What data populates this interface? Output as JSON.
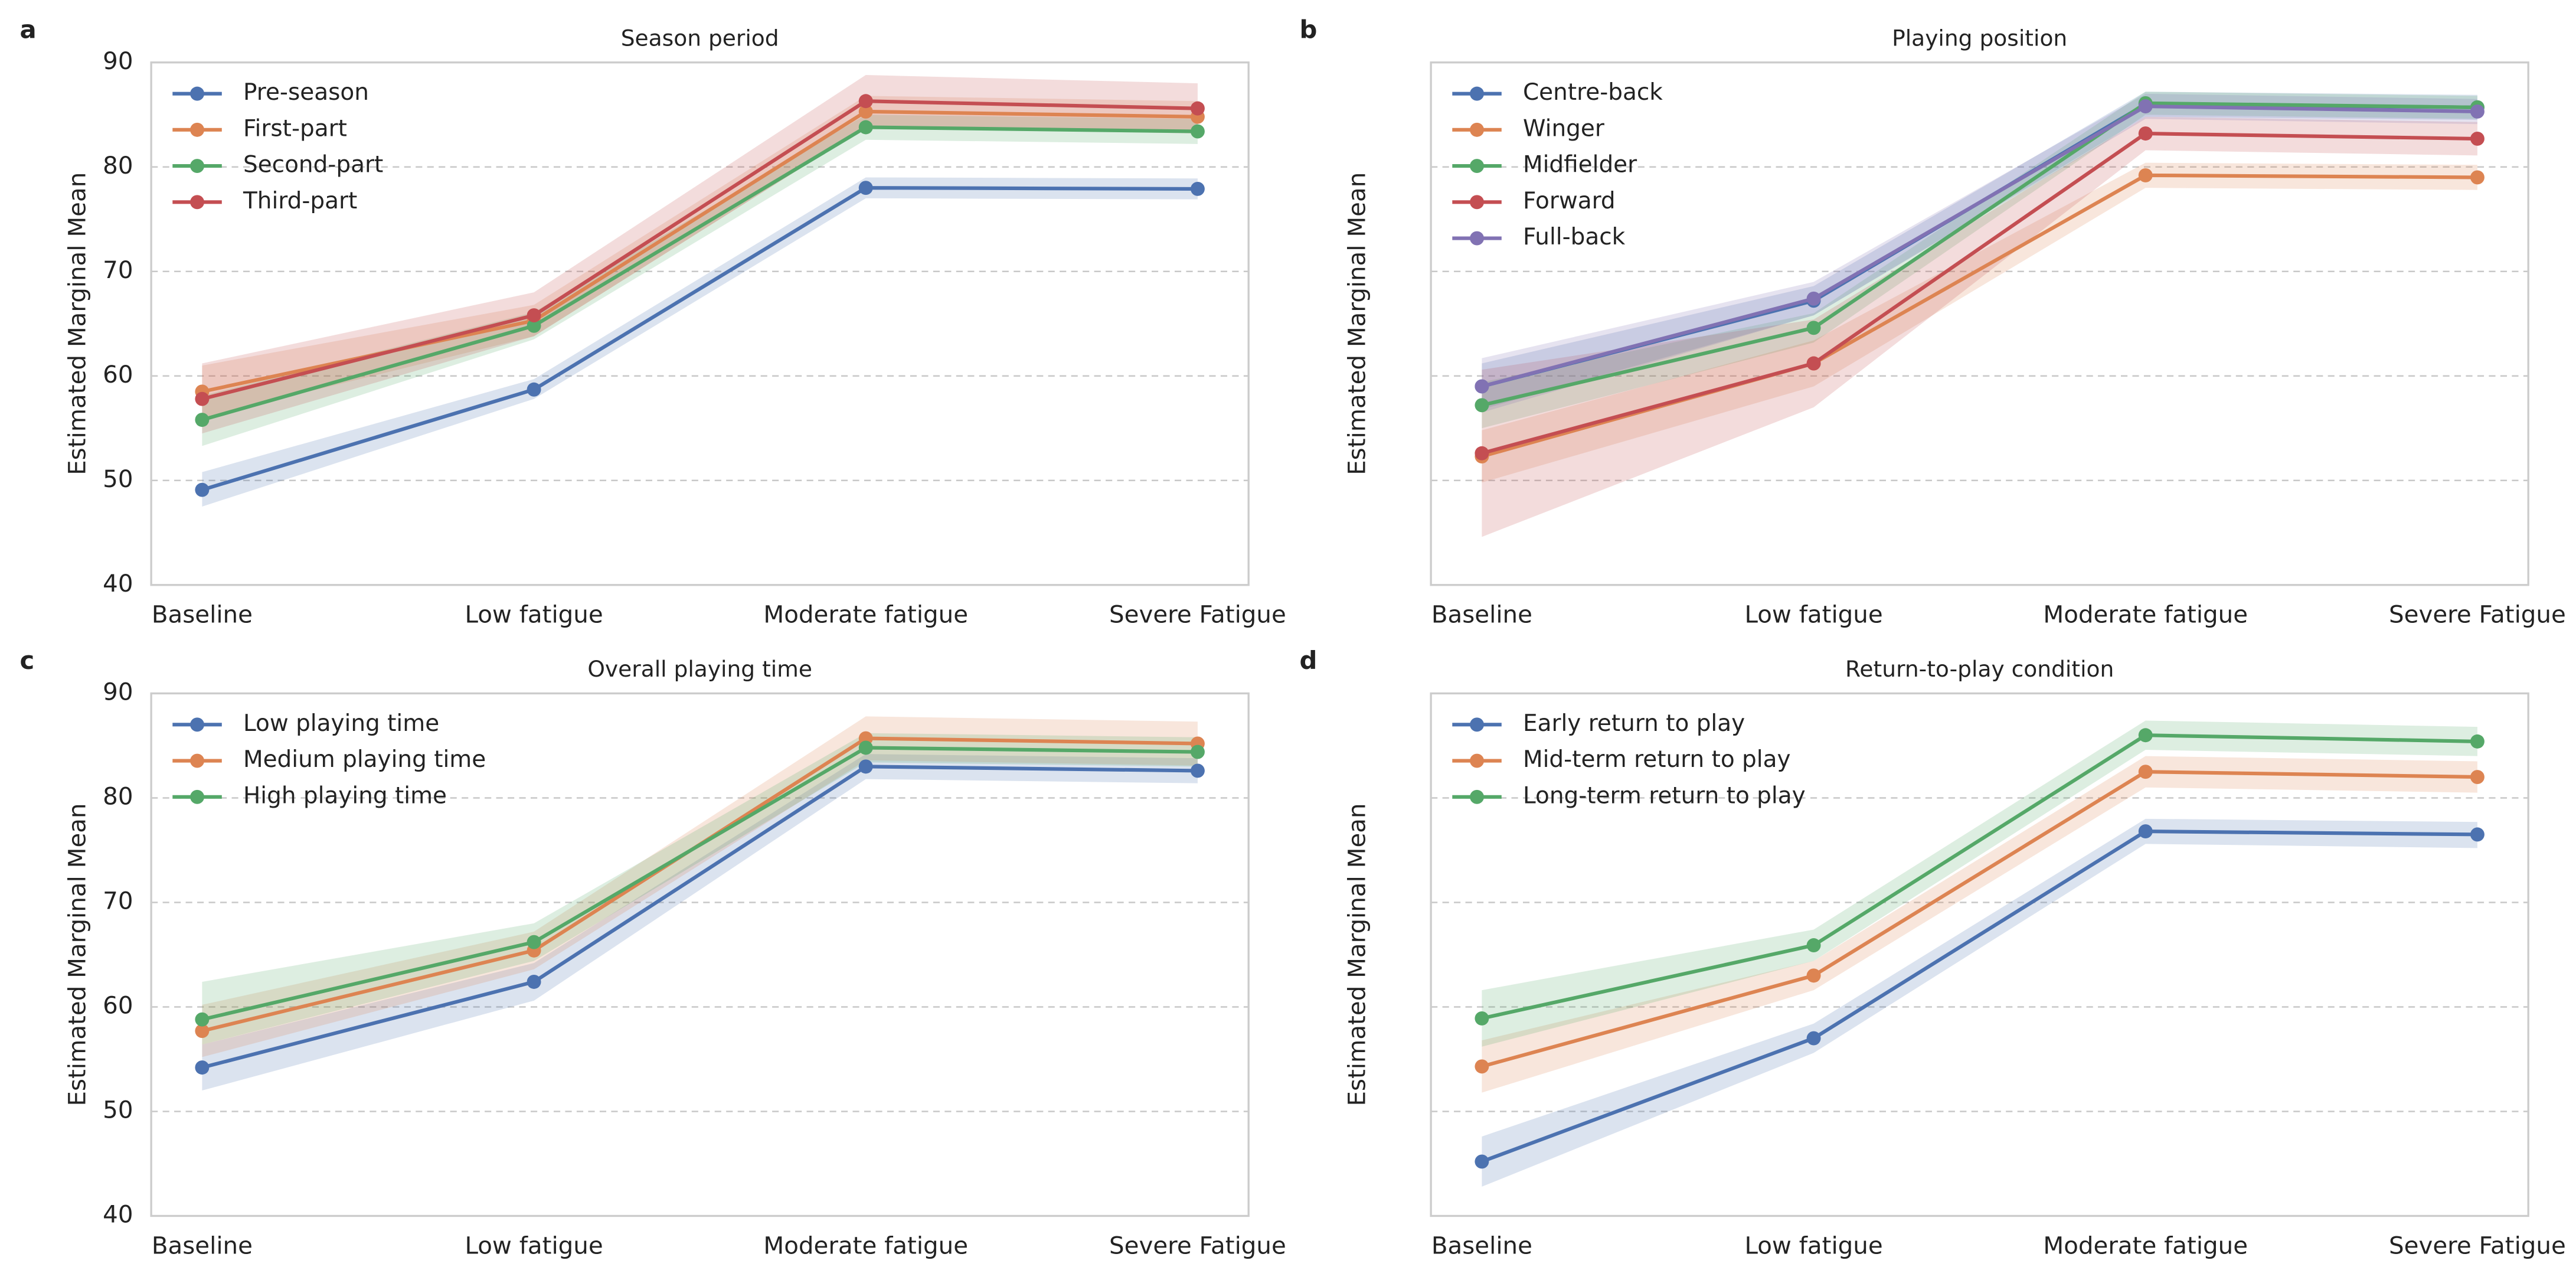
{
  "chart_data": [
    {
      "type": "line",
      "panel": "a",
      "title": "Season period",
      "ylabel": "Estimated Marginal Mean",
      "categories": [
        "Baseline",
        "Low fatigue",
        "Moderate fatigue",
        "Severe Fatigue"
      ],
      "ylim": [
        40,
        90
      ],
      "yticks": [
        40,
        50,
        60,
        70,
        80,
        90
      ],
      "show_ytick_labels": true,
      "grid": true,
      "legend": "upper left",
      "series": [
        {
          "name": "Pre-season",
          "color": "#4c72b0",
          "values": [
            49.1,
            58.7,
            78.0,
            77.9
          ],
          "lower": [
            47.5,
            57.8,
            77.0,
            76.9
          ],
          "upper": [
            50.8,
            59.7,
            79.0,
            78.9
          ]
        },
        {
          "name": "First-part",
          "color": "#dd8452",
          "values": [
            58.5,
            65.3,
            85.3,
            84.8
          ],
          "lower": [
            56.0,
            63.8,
            83.8,
            83.3
          ],
          "upper": [
            61.0,
            66.8,
            86.8,
            86.3
          ]
        },
        {
          "name": "Second-part",
          "color": "#55a868",
          "values": [
            55.8,
            64.8,
            83.8,
            83.4
          ],
          "lower": [
            53.3,
            63.5,
            82.6,
            82.2
          ],
          "upper": [
            58.1,
            66.1,
            85.0,
            84.6
          ]
        },
        {
          "name": "Third-part",
          "color": "#c44e52",
          "values": [
            57.8,
            65.8,
            86.3,
            85.6
          ],
          "lower": [
            54.5,
            63.8,
            83.8,
            83.2
          ],
          "upper": [
            61.2,
            68.0,
            88.8,
            88.0
          ]
        }
      ]
    },
    {
      "type": "line",
      "panel": "b",
      "title": "Playing position",
      "ylabel": "Estimated Marginal Mean",
      "categories": [
        "Baseline",
        "Low fatigue",
        "Moderate fatigue",
        "Severe Fatigue"
      ],
      "ylim": [
        40,
        90
      ],
      "yticks": [
        40,
        50,
        60,
        70,
        80,
        90
      ],
      "show_ytick_labels": false,
      "grid": true,
      "legend": "upper left",
      "series": [
        {
          "name": "Centre-back",
          "color": "#4c72b0",
          "values": [
            59.0,
            67.2,
            86.0,
            85.7
          ],
          "lower": [
            56.8,
            65.8,
            84.8,
            84.5
          ],
          "upper": [
            61.2,
            68.6,
            87.2,
            86.9
          ]
        },
        {
          "name": "Winger",
          "color": "#dd8452",
          "values": [
            52.3,
            61.2,
            79.2,
            79.0
          ],
          "lower": [
            49.8,
            59.0,
            78.0,
            77.8
          ],
          "upper": [
            54.8,
            63.4,
            80.4,
            80.2
          ]
        },
        {
          "name": "Midfielder",
          "color": "#55a868",
          "values": [
            57.2,
            64.6,
            86.1,
            85.7
          ],
          "lower": [
            55.0,
            63.2,
            85.0,
            84.6
          ],
          "upper": [
            59.4,
            66.0,
            87.2,
            86.8
          ]
        },
        {
          "name": "Forward",
          "color": "#c44e52",
          "values": [
            52.6,
            61.2,
            83.2,
            82.7
          ],
          "lower": [
            44.6,
            57.0,
            81.6,
            81.1
          ],
          "upper": [
            60.6,
            65.4,
            84.8,
            84.3
          ]
        },
        {
          "name": "Full-back",
          "color": "#8172b3",
          "values": [
            59.0,
            67.4,
            85.8,
            85.3
          ],
          "lower": [
            56.5,
            65.8,
            84.6,
            84.1
          ],
          "upper": [
            61.7,
            69.0,
            87.0,
            86.5
          ]
        }
      ]
    },
    {
      "type": "line",
      "panel": "c",
      "title": "Overall playing time",
      "ylabel": "Estimated Marginal Mean",
      "categories": [
        "Baseline",
        "Low fatigue",
        "Moderate fatigue",
        "Severe Fatigue"
      ],
      "ylim": [
        40,
        90
      ],
      "yticks": [
        40,
        50,
        60,
        70,
        80,
        90
      ],
      "show_ytick_labels": true,
      "grid": true,
      "legend": "upper left",
      "series": [
        {
          "name": "Low playing time",
          "color": "#4c72b0",
          "values": [
            54.2,
            62.4,
            83.0,
            82.6
          ],
          "lower": [
            52.0,
            60.6,
            81.8,
            81.4
          ],
          "upper": [
            56.4,
            64.2,
            84.2,
            83.8
          ]
        },
        {
          "name": "Medium playing time",
          "color": "#dd8452",
          "values": [
            57.7,
            65.4,
            85.7,
            85.2
          ],
          "lower": [
            55.2,
            63.6,
            83.6,
            83.1
          ],
          "upper": [
            60.2,
            67.2,
            87.8,
            87.3
          ]
        },
        {
          "name": "High playing time",
          "color": "#55a868",
          "values": [
            58.8,
            66.2,
            84.8,
            84.4
          ],
          "lower": [
            56.4,
            64.4,
            83.4,
            83.0
          ],
          "upper": [
            62.4,
            68.0,
            86.2,
            85.8
          ]
        }
      ]
    },
    {
      "type": "line",
      "panel": "d",
      "title": "Return-to-play condition",
      "ylabel": "Estimated Marginal Mean",
      "categories": [
        "Baseline",
        "Low fatigue",
        "Moderate fatigue",
        "Severe Fatigue"
      ],
      "ylim": [
        40,
        90
      ],
      "yticks": [
        40,
        50,
        60,
        70,
        80,
        90
      ],
      "show_ytick_labels": false,
      "grid": true,
      "legend": "upper left",
      "series": [
        {
          "name": "Early return to play",
          "color": "#4c72b0",
          "values": [
            45.2,
            57.0,
            76.8,
            76.5
          ],
          "lower": [
            42.8,
            55.6,
            75.6,
            75.2
          ],
          "upper": [
            47.6,
            58.4,
            78.0,
            77.7
          ]
        },
        {
          "name": "Mid-term return to play",
          "color": "#dd8452",
          "values": [
            54.3,
            63.0,
            82.5,
            82.0
          ],
          "lower": [
            51.8,
            61.6,
            81.0,
            80.5
          ],
          "upper": [
            56.8,
            64.4,
            84.0,
            83.5
          ]
        },
        {
          "name": "Long-term return to play",
          "color": "#55a868",
          "values": [
            58.9,
            65.9,
            86.0,
            85.4
          ],
          "lower": [
            56.2,
            64.4,
            84.6,
            84.0
          ],
          "upper": [
            61.6,
            67.4,
            87.4,
            86.8
          ]
        }
      ]
    }
  ]
}
